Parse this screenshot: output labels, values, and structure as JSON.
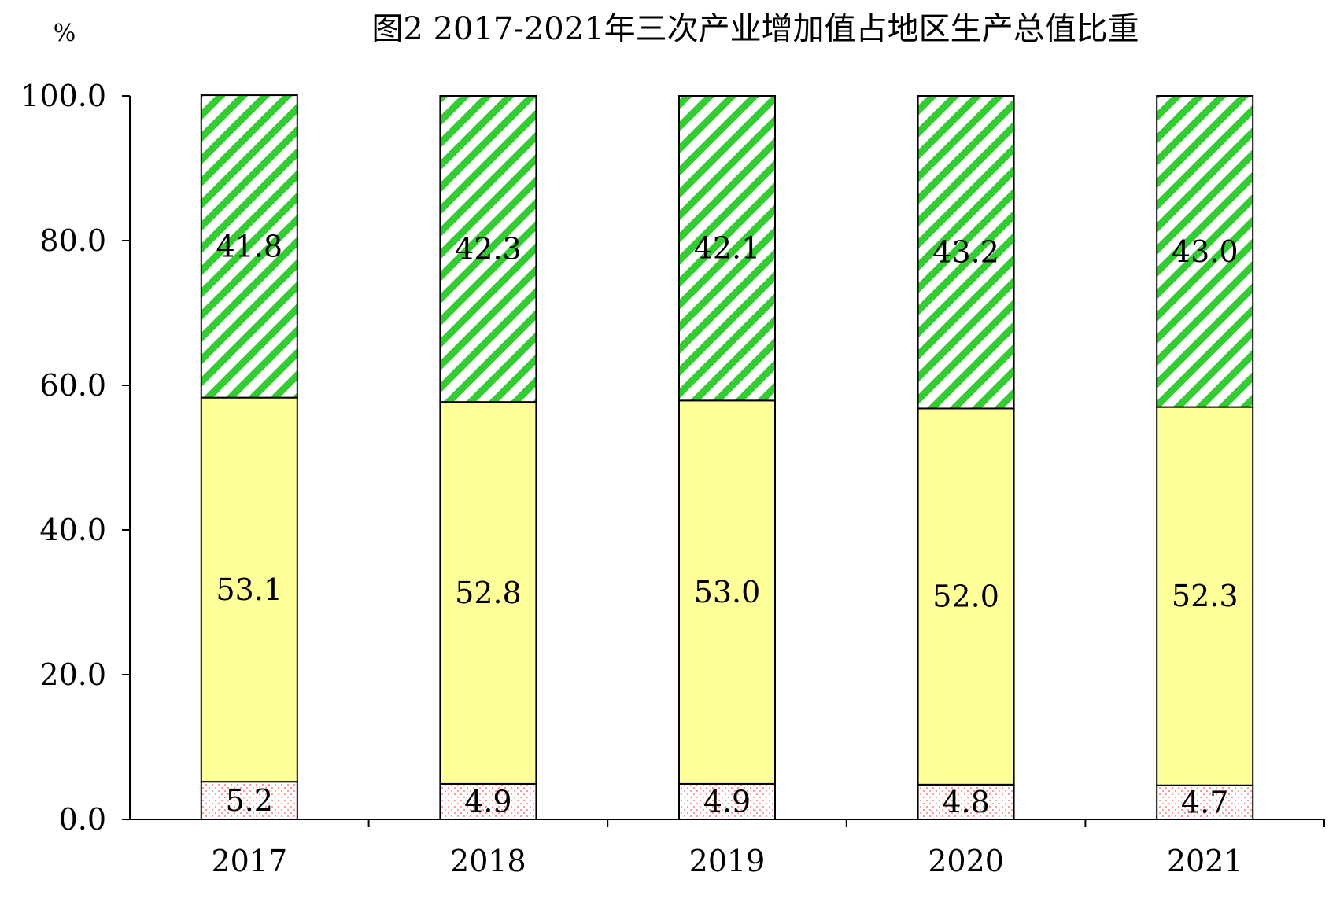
{
  "chart_data": {
    "type": "bar",
    "stacked": true,
    "title": "图2   2017-2021年三次产业增加值占地区生产总值比重",
    "ylabel": "%",
    "ylim": [
      0,
      100
    ],
    "yticks": [
      "0.0",
      "20.0",
      "40.0",
      "60.0",
      "80.0",
      "100.0"
    ],
    "categories": [
      "2017",
      "2018",
      "2019",
      "2020",
      "2021"
    ],
    "series": [
      {
        "values": [
          5.2,
          4.9,
          4.9,
          4.8,
          4.7
        ],
        "labels": [
          "5.2",
          "4.9",
          "4.9",
          "4.8",
          "4.7"
        ],
        "color": "#ff9999",
        "fill": "dotted"
      },
      {
        "values": [
          53.1,
          52.8,
          53.0,
          52.0,
          52.3
        ],
        "labels": [
          "53.1",
          "52.8",
          "53.0",
          "52.0",
          "52.3"
        ],
        "color": "#ffff99",
        "fill": "solid"
      },
      {
        "values": [
          41.8,
          42.3,
          42.1,
          43.2,
          43.0
        ],
        "labels": [
          "41.8",
          "42.3",
          "42.1",
          "43.2",
          "43.0"
        ],
        "color": "#33cc33",
        "fill": "diagonal-stripes"
      }
    ],
    "grid": false,
    "legend": "none"
  }
}
